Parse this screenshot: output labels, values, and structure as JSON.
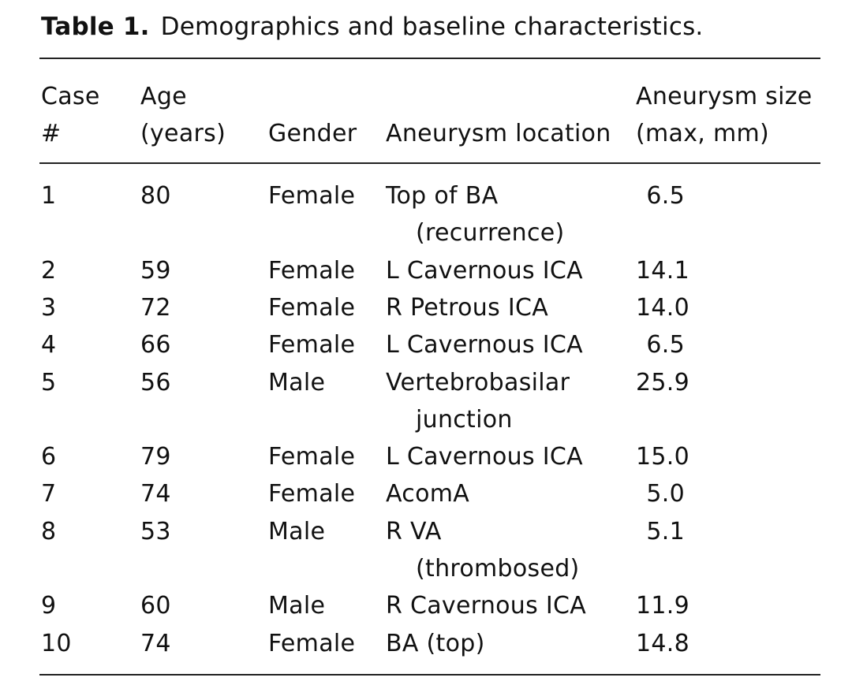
{
  "caption": {
    "label": "Table 1.",
    "text": "Demographics and baseline characteristics."
  },
  "headers": {
    "case": [
      "Case",
      "#"
    ],
    "age": [
      "Age",
      "(years)"
    ],
    "gender": [
      "",
      "Gender"
    ],
    "location": [
      "",
      "Aneurysm location"
    ],
    "size": [
      "Aneurysm size",
      "(max, mm)"
    ]
  },
  "rows": [
    {
      "case": "1",
      "age": "80",
      "gender": "Female",
      "location": [
        "Top of BA",
        "(recurrence)"
      ],
      "size": "6.5"
    },
    {
      "case": "2",
      "age": "59",
      "gender": "Female",
      "location": [
        "L Cavernous ICA"
      ],
      "size": "14.1"
    },
    {
      "case": "3",
      "age": "72",
      "gender": "Female",
      "location": [
        "R Petrous ICA"
      ],
      "size": "14.0"
    },
    {
      "case": "4",
      "age": "66",
      "gender": "Female",
      "location": [
        "L Cavernous ICA"
      ],
      "size": "6.5"
    },
    {
      "case": "5",
      "age": "56",
      "gender": "Male",
      "location": [
        "Vertebrobasilar",
        "junction"
      ],
      "size": "25.9"
    },
    {
      "case": "6",
      "age": "79",
      "gender": "Female",
      "location": [
        "L Cavernous ICA"
      ],
      "size": "15.0"
    },
    {
      "case": "7",
      "age": "74",
      "gender": "Female",
      "location": [
        "AcomA"
      ],
      "size": "5.0"
    },
    {
      "case": "8",
      "age": "53",
      "gender": "Male",
      "location": [
        "R VA",
        "(thrombosed)"
      ],
      "size": "5.1"
    },
    {
      "case": "9",
      "age": "60",
      "gender": "Male",
      "location": [
        "R Cavernous ICA"
      ],
      "size": "11.9"
    },
    {
      "case": "10",
      "age": "74",
      "gender": "Female",
      "location": [
        "BA (top)"
      ],
      "size": "14.8"
    }
  ]
}
